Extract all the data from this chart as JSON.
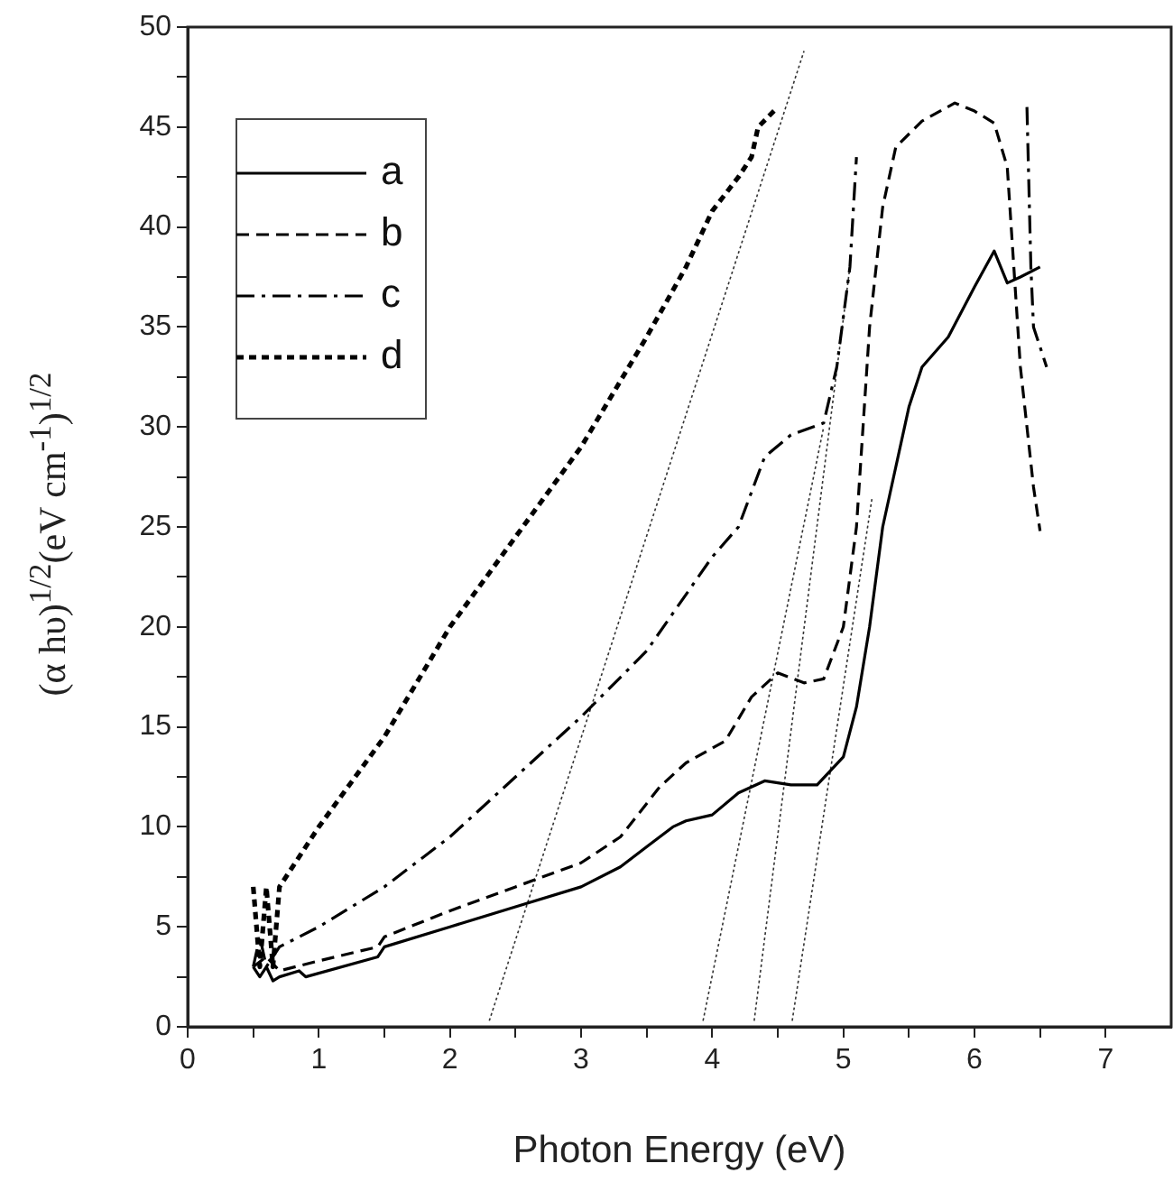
{
  "chart_data": {
    "type": "line",
    "xlabel": "Photon Energy (eV)",
    "ylabel": "(α hυ)$^{1/2}$(eV cm$^{-1}$)$^{1/2}$",
    "xlim": [
      0,
      7.5
    ],
    "xticks": [
      0,
      {
        "value": 0.5,
        "label": null
      },
      1,
      {
        "value": 1.5,
        "label": null
      },
      2,
      {
        "value": 2.5,
        "label": null
      },
      3,
      {
        "value": 3.5,
        "label": null
      },
      4,
      {
        "value": 4.5,
        "label": null
      },
      5,
      {
        "value": 5.5,
        "label": null
      },
      6,
      {
        "value": 6.5,
        "label": null
      },
      7
    ],
    "ylim": [
      0,
      50
    ],
    "yticks": [
      0,
      {
        "value": 2.5,
        "label": null
      },
      5,
      {
        "value": 7.5,
        "label": null
      },
      10,
      {
        "value": 12.5,
        "label": null
      },
      15,
      {
        "value": 17.5,
        "label": null
      },
      20,
      {
        "value": 22.5,
        "label": null
      },
      25,
      {
        "value": 27.5,
        "label": null
      },
      30,
      {
        "value": 32.5,
        "label": null
      },
      35,
      {
        "value": 37.5,
        "label": null
      },
      40,
      {
        "value": 42.5,
        "label": null
      },
      45,
      {
        "value": 47.5,
        "label": null
      },
      50
    ],
    "grid": false,
    "legend": "top left",
    "marker": "none",
    "series": [
      {
        "name": "a",
        "color": "#000000",
        "line_style": "solid",
        "x": [
          0.5,
          0.55,
          0.6,
          0.65,
          0.7,
          0.85,
          0.9,
          1.45,
          1.5,
          2,
          2.5,
          3,
          3.3,
          3.5,
          3.7,
          3.8,
          4,
          4.2,
          4.4,
          4.6,
          4.8,
          5,
          5.1,
          5.2,
          5.3,
          5.4,
          5.5,
          5.6,
          5.8,
          6,
          6.15,
          6.25,
          6.35,
          6.5
        ],
        "values": [
          3,
          2.5,
          3,
          2.3,
          2.5,
          2.8,
          2.5,
          3.5,
          4,
          5,
          6,
          7,
          8,
          9,
          10,
          10.3,
          10.6,
          11.7,
          12.3,
          12.1,
          12.1,
          13.5,
          16,
          20,
          25,
          28,
          31,
          33,
          34.5,
          37,
          38.8,
          37.2,
          37.5,
          38
        ]
      },
      {
        "name": "b",
        "color": "#000000",
        "line_style": "dashed",
        "x": [
          0.5,
          0.6,
          0.7,
          1,
          1.45,
          1.5,
          2,
          2.5,
          3,
          3.3,
          3.6,
          3.8,
          4.1,
          4.3,
          4.5,
          4.7,
          4.85,
          5,
          5.1,
          5.2,
          5.3,
          5.4,
          5.6,
          5.85,
          6,
          6.15,
          6.25,
          6.3,
          6.35,
          6.45,
          6.5
        ],
        "values": [
          3,
          3.5,
          2.8,
          3.3,
          4,
          4.5,
          5.8,
          7,
          8.2,
          9.5,
          12,
          13.2,
          14.3,
          16.5,
          17.7,
          17.2,
          17.4,
          20,
          25,
          35,
          41,
          44,
          45.3,
          46.2,
          45.8,
          45.2,
          43,
          38,
          33,
          27,
          24.8
        ]
      },
      {
        "name": "c",
        "color": "#000000",
        "line_style": "dashdot",
        "x": [
          0.5,
          0.55,
          0.6,
          0.7,
          1,
          1.5,
          2,
          2.5,
          3,
          3.5,
          4,
          4.2,
          4.4,
          4.6,
          4.85,
          4.95,
          5.05,
          5.1,
          5.8,
          6.4,
          6.43,
          6.45,
          6.55
        ],
        "values": [
          3,
          4.5,
          3,
          4,
          5,
          7,
          9.5,
          12.5,
          15.5,
          18.8,
          23.5,
          25,
          28.5,
          29.6,
          30.2,
          33,
          38,
          43.5,
          null,
          46,
          38,
          35,
          33
        ]
      },
      {
        "name": "d",
        "color": "#000000",
        "line_style": "dotted",
        "x": [
          0.5,
          0.55,
          0.6,
          0.65,
          0.7,
          1,
          1.5,
          2,
          2.5,
          3,
          3.5,
          3.8,
          4,
          4.2,
          4.3,
          4.35,
          4.5
        ],
        "values": [
          7,
          3,
          7,
          3,
          7,
          10,
          14.5,
          20,
          24.5,
          29,
          34.5,
          38,
          40.8,
          42.5,
          43.5,
          45,
          46
        ]
      },
      {
        "color": "#333333",
        "line_style": "dotted",
        "x": [
          2.3,
          4.7
        ],
        "values": [
          0.3,
          48.8
        ]
      },
      {
        "color": "#333333",
        "line_style": "dotted",
        "x": [
          3.93,
          4.85
        ],
        "values": [
          0.3,
          30
        ]
      },
      {
        "color": "#333333",
        "line_style": "dotted",
        "x": [
          4.32,
          5.05
        ],
        "values": [
          0.3,
          38
        ]
      },
      {
        "color": "#333333",
        "line_style": "dotted",
        "x": [
          4.61,
          5.22
        ],
        "values": [
          0.3,
          26.5
        ]
      }
    ]
  }
}
